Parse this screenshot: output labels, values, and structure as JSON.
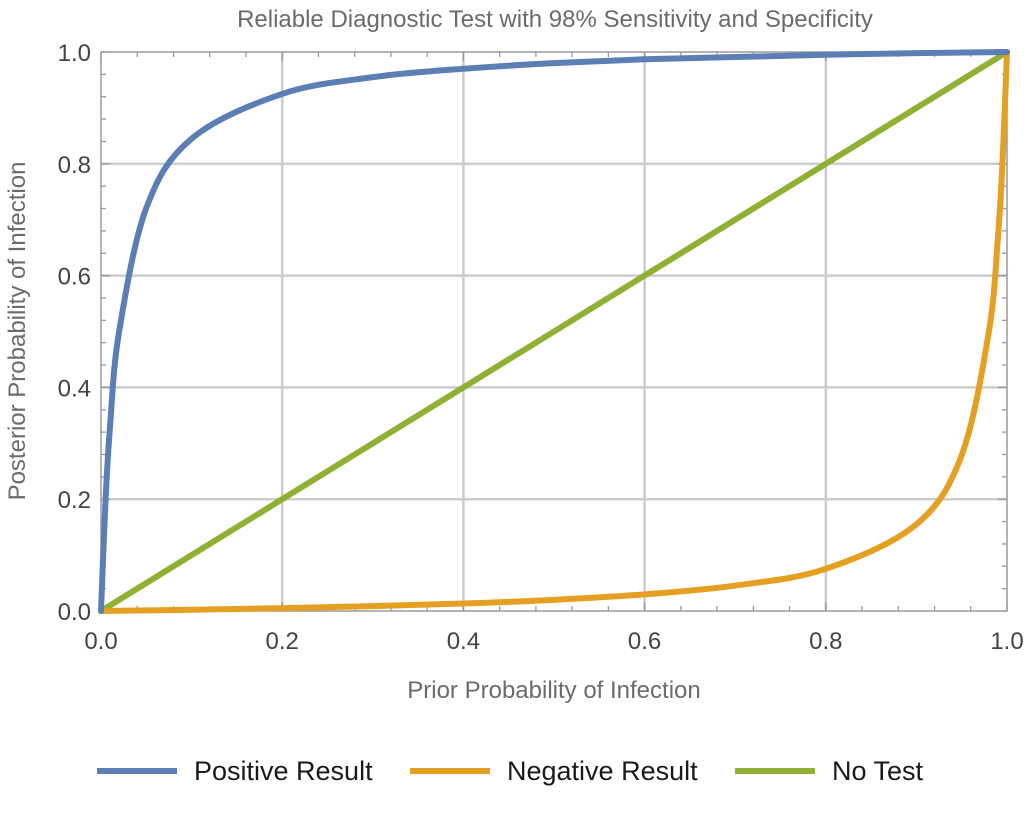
{
  "chart_data": {
    "type": "line",
    "title": "Reliable Diagnostic Test with 98% Sensitivity and Specificity",
    "xlabel": "Prior Probability of Infection",
    "ylabel": "Posterior Probability of Infection",
    "xlim": [
      0,
      1
    ],
    "ylim": [
      0,
      1
    ],
    "grid": true,
    "legend_position": "bottom",
    "xticks": [
      "0.0",
      "0.2",
      "0.4",
      "0.6",
      "0.8",
      "1.0"
    ],
    "yticks": [
      "0.0",
      "0.2",
      "0.4",
      "0.6",
      "0.8",
      "1.0"
    ],
    "x": [
      0,
      0.005,
      0.01,
      0.02,
      0.05,
      0.1,
      0.2,
      0.3,
      0.4,
      0.5,
      0.6,
      0.7,
      0.8,
      0.9,
      0.95,
      0.98,
      0.99,
      0.995,
      1
    ],
    "series": [
      {
        "name": "Positive Result",
        "color": "#5b7fb5",
        "values": [
          0,
          0.198,
          0.331,
          0.5,
          0.721,
          0.845,
          0.925,
          0.955,
          0.97,
          0.98,
          0.987,
          0.991,
          0.995,
          0.998,
          0.999,
          0.9996,
          0.9998,
          0.9999,
          1
        ]
      },
      {
        "name": "Negative Result",
        "color": "#e5a024",
        "values": [
          0,
          0.0001,
          0.0002,
          0.0004,
          0.0011,
          0.0023,
          0.0051,
          0.0087,
          0.0134,
          0.02,
          0.0297,
          0.0455,
          0.0755,
          0.155,
          0.279,
          0.5,
          0.669,
          0.802,
          1
        ]
      },
      {
        "name": "No Test",
        "color": "#8fb032",
        "values": [
          0,
          0.005,
          0.01,
          0.02,
          0.05,
          0.1,
          0.2,
          0.3,
          0.4,
          0.5,
          0.6,
          0.7,
          0.8,
          0.9,
          0.95,
          0.98,
          0.99,
          0.995,
          1
        ]
      }
    ]
  }
}
